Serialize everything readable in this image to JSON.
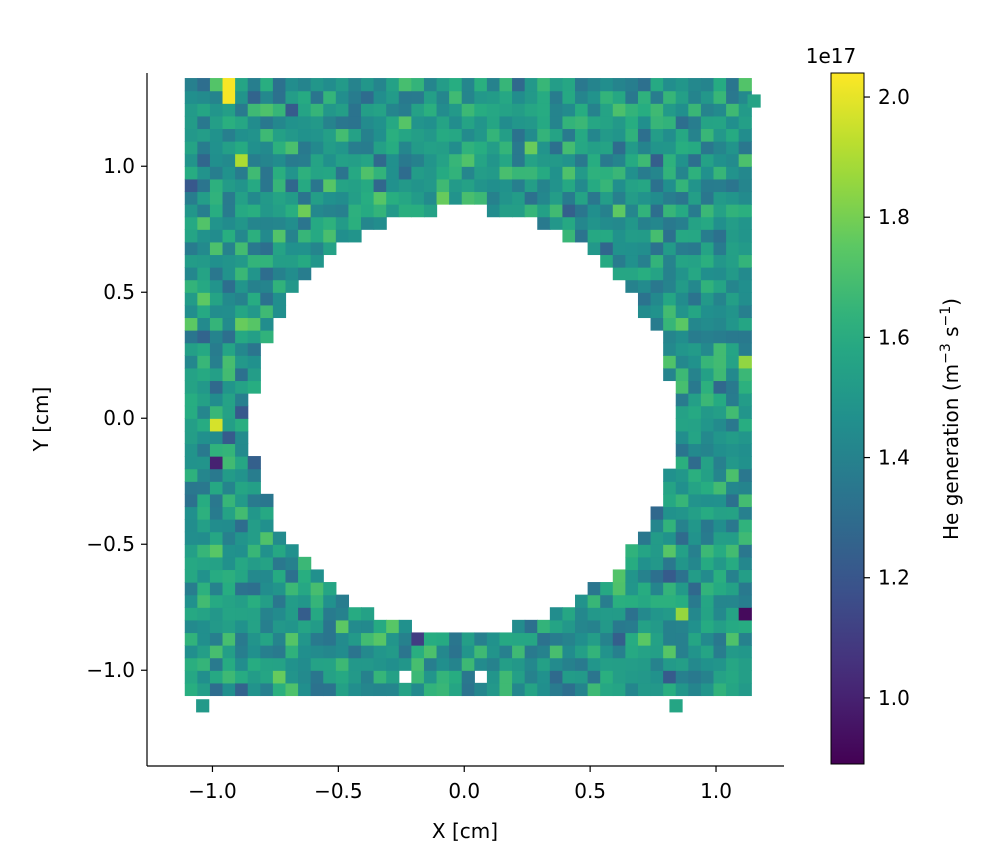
{
  "chart_data": {
    "type": "heatmap",
    "title": "",
    "xlabel": "X [cm]",
    "ylabel": "Y [cm]",
    "xlim": [
      -1.26,
      1.27
    ],
    "ylim": [
      -1.38,
      1.37
    ],
    "xticks": [
      -1.0,
      -0.5,
      0.0,
      0.5,
      1.0
    ],
    "xtick_labels": [
      "−1.0",
      "−0.5",
      "0.0",
      "0.5",
      "1.0"
    ],
    "yticks": [
      1.0,
      0.5,
      0.0,
      -0.5,
      -1.0
    ],
    "ytick_labels": [
      "1.0",
      "0.5",
      "0.0",
      "−0.5",
      "−1.0"
    ],
    "grid": false,
    "colormap": "viridis",
    "cell_size_cm": 0.05,
    "domain_x": [
      -1.11,
      1.12
    ],
    "domain_y": [
      -1.1,
      1.33
    ],
    "hole": {
      "center": [
        -0.005,
        -0.01
      ],
      "radius": 0.84
    },
    "colorbar": {
      "label": "He generation (m⁻³ s⁻¹)",
      "label_text": "He generation (m",
      "label_sup1": "−3",
      "label_mid": " s",
      "label_sup2": "−1",
      "label_end": ")",
      "exponent": "1e17",
      "range": [
        0.89,
        2.04
      ],
      "ticks": [
        1.0,
        1.2,
        1.4,
        1.6,
        1.8,
        2.0
      ],
      "tick_labels": [
        "1.0",
        "1.2",
        "1.4",
        "1.6",
        "1.8",
        "2.0"
      ]
    },
    "value_range": [
      0.9,
      2.04
    ],
    "typical_value": 1.5,
    "notable_values": [
      {
        "x": -0.93,
        "y": 1.3,
        "value": 2.03
      },
      {
        "x": -1.0,
        "y": -0.02,
        "value": 1.97
      },
      {
        "x": 1.1,
        "y": -0.77,
        "value": 0.92
      },
      {
        "x": -1.0,
        "y": -0.19,
        "value": 1.0
      },
      {
        "x": -0.88,
        "y": 1.02,
        "value": 1.9
      },
      {
        "x": 0.88,
        "y": -0.78,
        "value": 1.86
      },
      {
        "x": 1.1,
        "y": 0.22,
        "value": 1.85
      },
      {
        "x": -0.2,
        "y": -0.85,
        "value": 1.1
      }
    ],
    "outlier_cells": [
      {
        "x": 1.15,
        "y": 1.26
      },
      {
        "x": -1.04,
        "y": -1.14
      },
      {
        "x": 0.84,
        "y": -1.14
      }
    ],
    "missing_cells": [
      {
        "x": -0.23,
        "y": -1.03
      },
      {
        "x": 0.08,
        "y": -1.03
      }
    ]
  }
}
